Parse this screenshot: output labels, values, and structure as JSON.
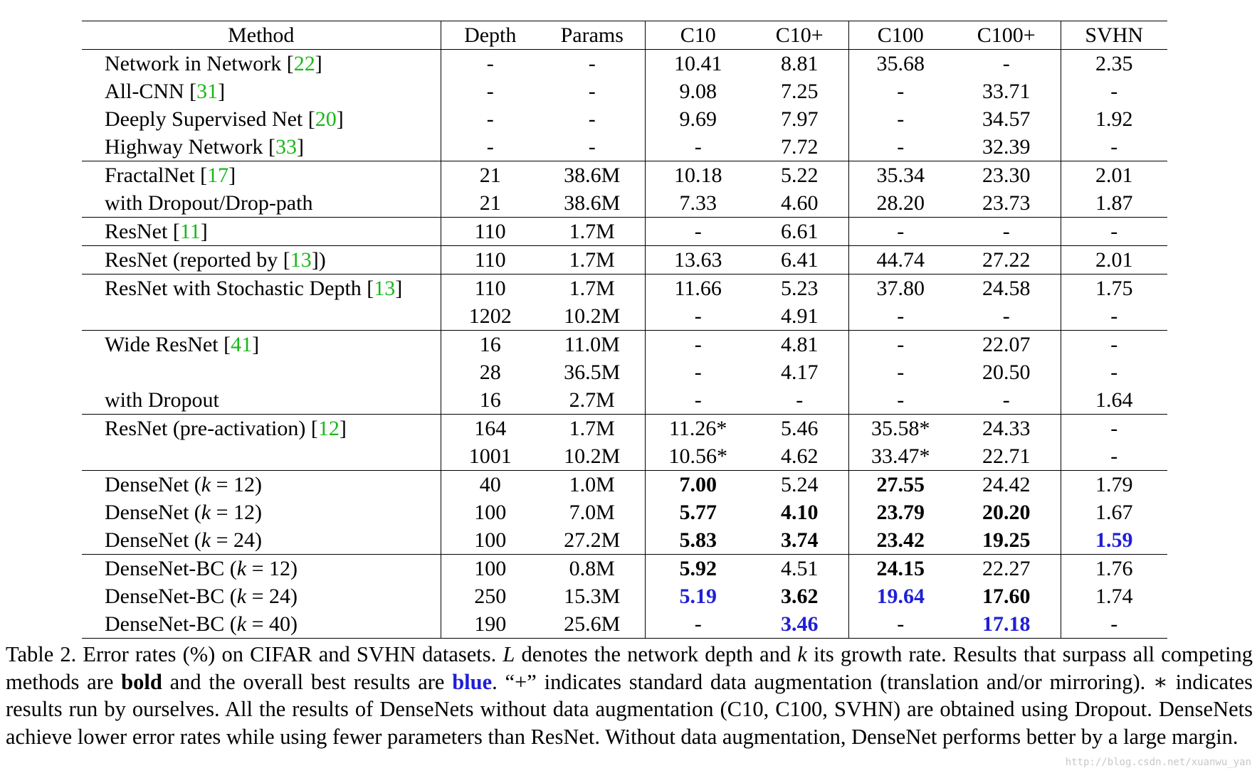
{
  "table": {
    "headers": {
      "method": "Method",
      "depth": "Depth",
      "params": "Params",
      "c10": "C10",
      "c10p": "C10+",
      "c100": "C100",
      "c100p": "C100+",
      "svhn": "SVHN"
    },
    "rows": [
      {
        "group_start": true,
        "name": "Network in Network ",
        "ref": "22",
        "close": "",
        "k": "",
        "depth": "-",
        "params": "-",
        "c10": "10.41",
        "c10p": "8.81",
        "c100": "35.68",
        "c100p": "-",
        "svhn": "2.35"
      },
      {
        "group_start": false,
        "name": "All-CNN ",
        "ref": "31",
        "close": "",
        "k": "",
        "depth": "-",
        "params": "-",
        "c10": "9.08",
        "c10p": "7.25",
        "c100": "-",
        "c100p": "33.71",
        "svhn": "-"
      },
      {
        "group_start": false,
        "name": "Deeply Supervised Net ",
        "ref": "20",
        "close": "",
        "k": "",
        "depth": "-",
        "params": "-",
        "c10": "9.69",
        "c10p": "7.97",
        "c100": "-",
        "c100p": "34.57",
        "svhn": "1.92"
      },
      {
        "group_start": false,
        "name": "Highway Network ",
        "ref": "33",
        "close": "",
        "k": "",
        "depth": "-",
        "params": "-",
        "c10": "-",
        "c10p": "7.72",
        "c100": "-",
        "c100p": "32.39",
        "svhn": "-"
      },
      {
        "group_start": true,
        "name": "FractalNet ",
        "ref": "17",
        "close": "",
        "k": "",
        "depth": "21",
        "params": "38.6M",
        "c10": "10.18",
        "c10p": "5.22",
        "c100": "35.34",
        "c100p": "23.30",
        "svhn": "2.01"
      },
      {
        "group_start": false,
        "name": "with Dropout/Drop-path",
        "ref": "",
        "close": "",
        "k": "",
        "depth": "21",
        "params": "38.6M",
        "c10": "7.33",
        "c10p": "4.60",
        "c100": "28.20",
        "c100p": "23.73",
        "svhn": "1.87"
      },
      {
        "group_start": true,
        "name": "ResNet ",
        "ref": "11",
        "close": "",
        "k": "",
        "depth": "110",
        "params": "1.7M",
        "c10": "-",
        "c10p": "6.61",
        "c100": "-",
        "c100p": "-",
        "svhn": "-"
      },
      {
        "group_start": true,
        "name": "ResNet (reported by ",
        "ref": "13",
        "close": ")",
        "k": "",
        "depth": "110",
        "params": "1.7M",
        "c10": "13.63",
        "c10p": "6.41",
        "c100": "44.74",
        "c100p": "27.22",
        "svhn": "2.01"
      },
      {
        "group_start": true,
        "name": "ResNet with Stochastic Depth ",
        "ref": "13",
        "close": "",
        "k": "",
        "depth": "110",
        "params": "1.7M",
        "c10": "11.66",
        "c10p": "5.23",
        "c100": "37.80",
        "c100p": "24.58",
        "svhn": "1.75"
      },
      {
        "group_start": false,
        "name": "",
        "ref": "",
        "close": "",
        "k": "",
        "depth": "1202",
        "params": "10.2M",
        "c10": "-",
        "c10p": "4.91",
        "c100": "-",
        "c100p": "-",
        "svhn": "-"
      },
      {
        "group_start": true,
        "name": "Wide ResNet ",
        "ref": "41",
        "close": "",
        "k": "",
        "depth": "16",
        "params": "11.0M",
        "c10": "-",
        "c10p": "4.81",
        "c100": "-",
        "c100p": "22.07",
        "svhn": "-"
      },
      {
        "group_start": false,
        "name": "",
        "ref": "",
        "close": "",
        "k": "",
        "depth": "28",
        "params": "36.5M",
        "c10": "-",
        "c10p": "4.17",
        "c100": "-",
        "c100p": "20.50",
        "svhn": "-"
      },
      {
        "group_start": false,
        "name": "with Dropout",
        "ref": "",
        "close": "",
        "k": "",
        "depth": "16",
        "params": "2.7M",
        "c10": "-",
        "c10p": "-",
        "c100": "-",
        "c100p": "-",
        "svhn": "1.64"
      },
      {
        "group_start": true,
        "name": "ResNet (pre-activation) ",
        "ref": "12",
        "close": "",
        "k": "",
        "depth": "164",
        "params": "1.7M",
        "c10": "11.26*",
        "c10p": "5.46",
        "c100": "35.58*",
        "c100p": "24.33",
        "svhn": "-"
      },
      {
        "group_start": false,
        "name": "",
        "ref": "",
        "close": "",
        "k": "",
        "depth": "1001",
        "params": "10.2M",
        "c10": "10.56*",
        "c10p": "4.62",
        "c100": "33.47*",
        "c100p": "22.71",
        "svhn": "-"
      },
      {
        "group_start": true,
        "name": "DenseNet ",
        "ref": "",
        "close": "",
        "k": "12",
        "depth": "40",
        "params": "1.0M",
        "c10": "7.00",
        "c10_s": "b",
        "c10p": "5.24",
        "c100": "27.55",
        "c100_s": "b",
        "c100p": "24.42",
        "svhn": "1.79"
      },
      {
        "group_start": false,
        "name": "DenseNet ",
        "ref": "",
        "close": "",
        "k": "12",
        "depth": "100",
        "params": "7.0M",
        "c10": "5.77",
        "c10_s": "b",
        "c10p": "4.10",
        "c10p_s": "b",
        "c100": "23.79",
        "c100_s": "b",
        "c100p": "20.20",
        "c100p_s": "b",
        "svhn": "1.67"
      },
      {
        "group_start": false,
        "name": "DenseNet ",
        "ref": "",
        "close": "",
        "k": "24",
        "depth": "100",
        "params": "27.2M",
        "c10": "5.83",
        "c10_s": "b",
        "c10p": "3.74",
        "c10p_s": "b",
        "c100": "23.42",
        "c100_s": "b",
        "c100p": "19.25",
        "c100p_s": "b",
        "svhn": "1.59",
        "svhn_s": "blue"
      },
      {
        "group_start": true,
        "name": "DenseNet-BC ",
        "ref": "",
        "close": "",
        "k": "12",
        "depth": "100",
        "params": "0.8M",
        "c10": "5.92",
        "c10_s": "b",
        "c10p": "4.51",
        "c100": "24.15",
        "c100_s": "b",
        "c100p": "22.27",
        "svhn": "1.76"
      },
      {
        "group_start": false,
        "name": "DenseNet-BC ",
        "ref": "",
        "close": "",
        "k": "24",
        "depth": "250",
        "params": "15.3M",
        "c10": "5.19",
        "c10_s": "blue",
        "c10p": "3.62",
        "c10p_s": "b",
        "c100": "19.64",
        "c100_s": "blue",
        "c100p": "17.60",
        "c100p_s": "b",
        "svhn": "1.74"
      },
      {
        "group_start": false,
        "name": "DenseNet-BC ",
        "ref": "",
        "close": "",
        "k": "40",
        "depth": "190",
        "params": "25.6M",
        "c10": "-",
        "c10p": "3.46",
        "c10p_s": "blue",
        "c100": "-",
        "c100p": "17.18",
        "c100p_s": "blue",
        "svhn": "-"
      }
    ]
  },
  "caption": {
    "p1": "Table 2. Error rates (%) on CIFAR and SVHN datasets. ",
    "L": "L",
    "p2": " denotes the network depth and ",
    "k": "k",
    "p3": " its growth rate. Results that surpass all competing methods are ",
    "bold_word": "bold",
    "p4": " and the overall best results are ",
    "blue_word": "blue",
    "p5": ". “+” indicates standard data augmentation (translation and/or mirroring). ∗ indicates results run by ourselves. All the results of DenseNets without data augmentation (C10, C100, SVHN) are obtained using Dropout. DenseNets achieve lower error rates while using fewer parameters than ResNet. Without data augmentation, DenseNet performs better by a large margin."
  },
  "watermark": "http://blog.csdn.net/xuanwu_yan",
  "colors": {
    "ref_green": "#19b819",
    "best_blue": "#1f1fd6"
  }
}
